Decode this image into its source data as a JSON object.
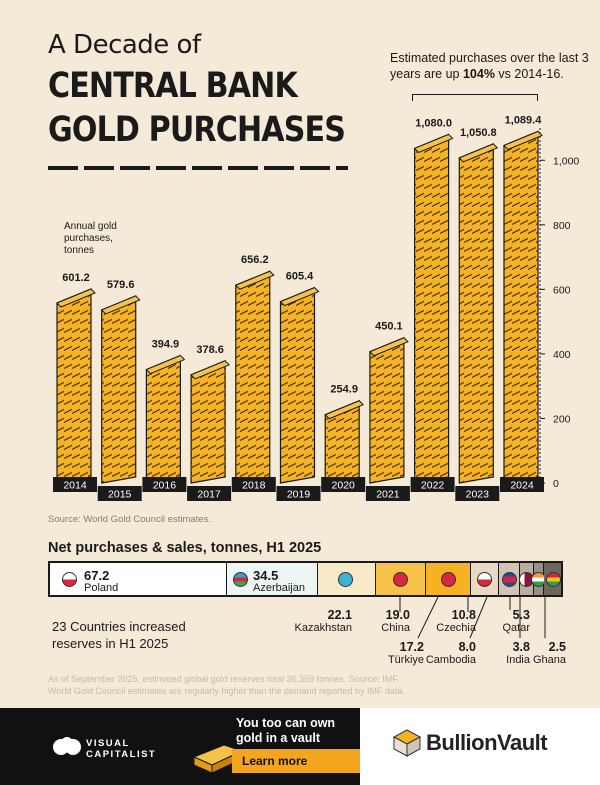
{
  "title": {
    "line1": "A Decade of",
    "line2": "CENTRAL BANK",
    "line3": "GOLD PURCHASES"
  },
  "note": {
    "text_before": "Estimated purchases over the last 3 years are up ",
    "highlight": "104%",
    "text_after": " vs 2014-16."
  },
  "chart_data": {
    "type": "bar",
    "title": "A Decade of Central Bank Gold Purchases",
    "ylabel": "Annual gold purchases, tonnes",
    "categories": [
      "2014",
      "2015",
      "2016",
      "2017",
      "2018",
      "2019",
      "2020",
      "2021",
      "2022",
      "2023",
      "2024"
    ],
    "values": [
      601.2,
      579.6,
      394.9,
      378.6,
      656.2,
      605.4,
      254.9,
      450.1,
      1080.0,
      1050.8,
      1089.4
    ],
    "value_labels": [
      "601.2",
      "579.6",
      "394.9",
      "378.6",
      "656.2",
      "605.4",
      "254.9",
      "450.1",
      "1,080.0",
      "1,050.8",
      "1,089.4"
    ],
    "ylim": [
      0,
      1100
    ],
    "yticks": [
      "0",
      "200",
      "400",
      "600",
      "800",
      "1,000"
    ],
    "grid": false,
    "bar_color": "#f5b323"
  },
  "ylabel_text": "Annual gold purchases, tonnes",
  "source": "Source: World Gold Council estimates.",
  "h1": {
    "title": "Net purchases & sales, tonnes, H1 2025",
    "segments": [
      {
        "country": "Poland",
        "value": "67.2",
        "fill": "#ffffff"
      },
      {
        "country": "Azerbaijan",
        "value": "34.5",
        "fill": "#eef6f3"
      },
      {
        "country": "Kazakhstan",
        "value": "22.1",
        "fill": "#f8e9c9"
      },
      {
        "country": "China",
        "value": "19.0",
        "fill": "#f7c24a"
      },
      {
        "country": "Türkiye",
        "value": "17.2",
        "fill": "#f5b323"
      },
      {
        "country": "Czechia",
        "value": "10.8",
        "fill": "#e8d9c2"
      },
      {
        "country": "Cambodia",
        "value": "8.0",
        "fill": "#cfc4b6"
      },
      {
        "country": "Qatar",
        "value": "5.3",
        "fill": "#b9aea2"
      },
      {
        "country": "India",
        "value": "3.8",
        "fill": "#9a9087"
      },
      {
        "country": "Ghana",
        "value": "2.5",
        "fill": "#6e665f"
      }
    ],
    "increased_text": "23 Countries increased reserves in H1 2025"
  },
  "footnote": "As of September 2025, estimated global gold reserves total 36,359 tonnes. Source: IMF. World Gold Council estimates are regularly higher than the demand reported by IMF data.",
  "footer": {
    "brand_line1": "VISUAL",
    "brand_line2": "CAPITALIST",
    "cta_line1": "You too can own",
    "cta_line2": "gold in a vault",
    "cta_button": "Learn more",
    "sponsor": "BullionVault"
  }
}
